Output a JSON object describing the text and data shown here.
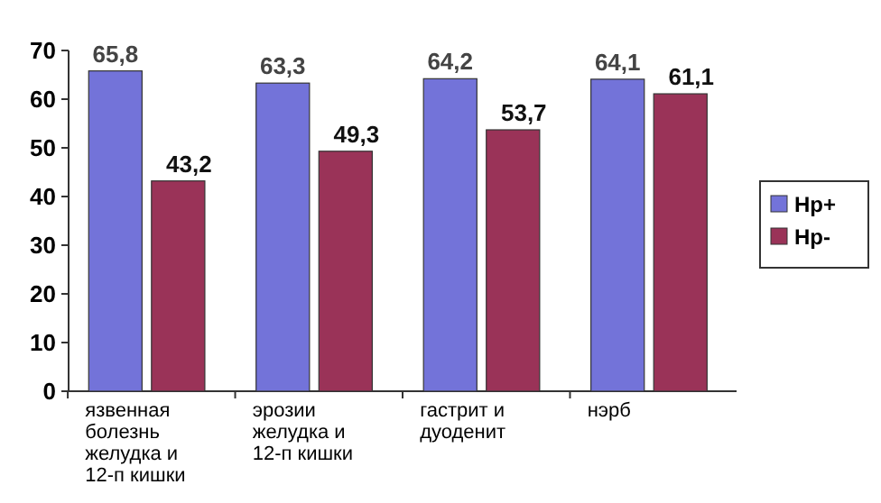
{
  "chart_data": {
    "type": "bar",
    "categories": [
      "язвенная болезнь желудка и 12-п кишки",
      "эрозии желудка и 12-п кишки",
      "гастрит и дуоденит",
      "нэрб"
    ],
    "series": [
      {
        "name": "Hp+",
        "color": "#7373d9",
        "values": [
          65.8,
          63.3,
          64.2,
          64.1
        ],
        "value_labels": [
          "65,8",
          "63,3",
          "64,2",
          "64,1"
        ]
      },
      {
        "name": "Hp-",
        "color": "#9a3358",
        "values": [
          43.2,
          49.3,
          53.7,
          61.1
        ],
        "value_labels": [
          "43,2",
          "49,3",
          "53,7",
          "61,1"
        ]
      }
    ],
    "ylim": [
      0,
      70
    ],
    "yticks": [
      0,
      10,
      20,
      30,
      40,
      50,
      60,
      70
    ],
    "legend": "right"
  }
}
